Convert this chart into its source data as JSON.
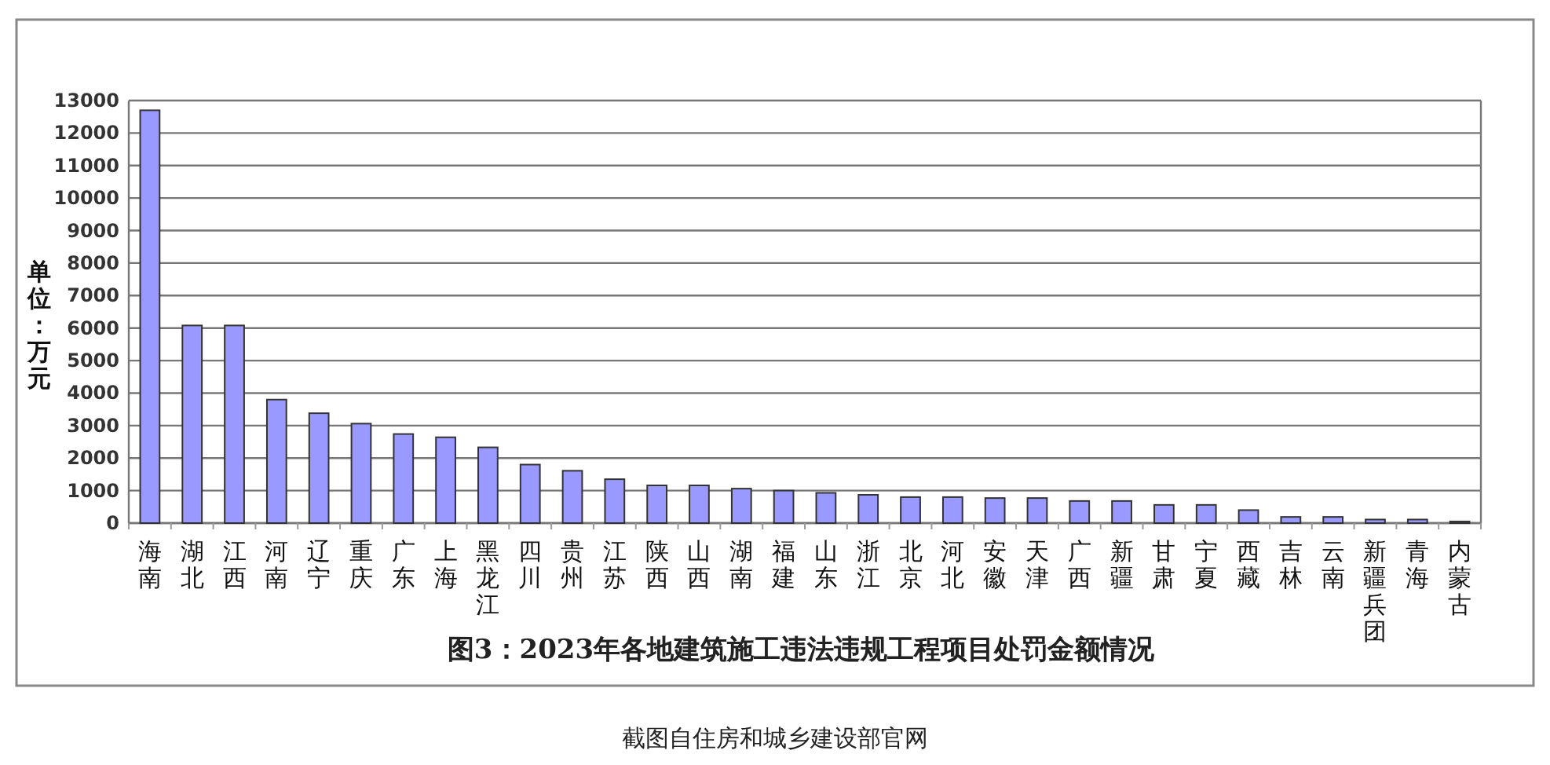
{
  "chart_data": {
    "type": "bar",
    "title": "图3：2023年各地建筑施工违法违规工程项目处罚金额情况",
    "ylabel": "单位：万元",
    "annotations": [
      "截图自住房和城乡建设部官网"
    ],
    "categories": [
      "海南",
      "湖北",
      "江西",
      "河南",
      "辽宁",
      "重庆",
      "广东",
      "上海",
      "黑龙江",
      "四川",
      "贵州",
      "江苏",
      "陕西",
      "山西",
      "湖南",
      "福建",
      "山东",
      "浙江",
      "北京",
      "河北",
      "安徽",
      "天津",
      "广西",
      "新疆",
      "甘肃",
      "宁夏",
      "西藏",
      "吉林",
      "云南",
      "新疆兵团",
      "青海",
      "内蒙古"
    ],
    "values": [
      12700,
      6080,
      6080,
      3800,
      3380,
      3060,
      2740,
      2640,
      2330,
      1800,
      1610,
      1350,
      1160,
      1160,
      1060,
      1000,
      930,
      870,
      800,
      800,
      770,
      770,
      680,
      680,
      560,
      560,
      400,
      190,
      190,
      110,
      110,
      50
    ],
    "color": "#9999ff",
    "ylim": [
      0,
      13000
    ],
    "yticks": [
      0,
      1000,
      2000,
      3000,
      4000,
      5000,
      6000,
      7000,
      8000,
      9000,
      10000,
      11000,
      12000,
      13000
    ],
    "grid": "y"
  }
}
